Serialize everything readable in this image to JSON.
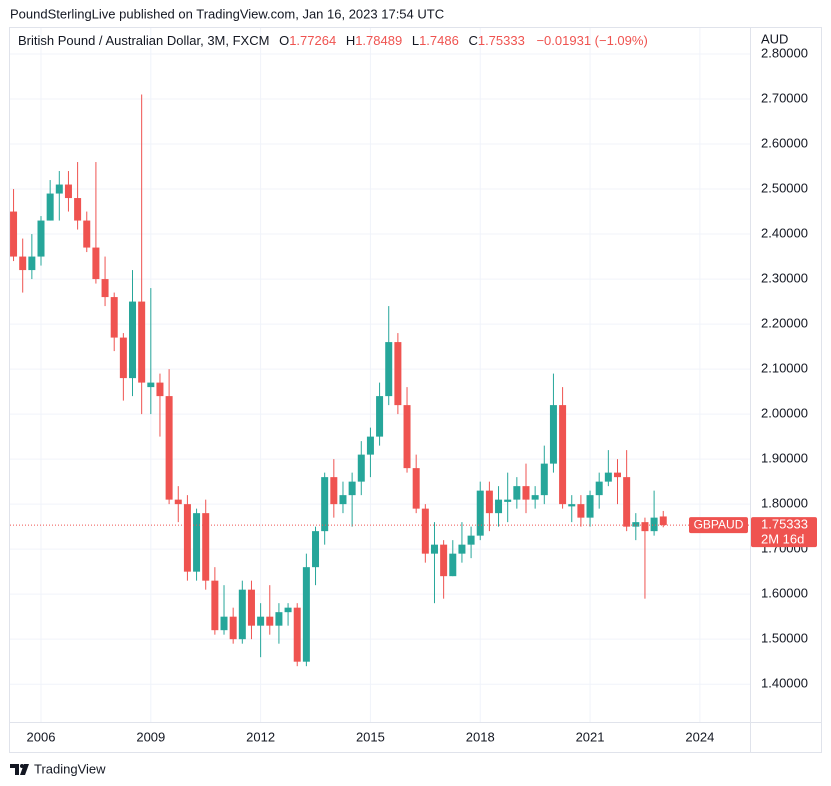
{
  "header": "PoundSterlingLive published on TradingView.com, Jan 16, 2023 17:54 UTC",
  "footer": "TradingView",
  "chart_data": {
    "type": "candlestick",
    "title": "British Pound / Australian Dollar, 3M, FXCM",
    "legend_labels": {
      "open": "O",
      "high": "H",
      "low": "L",
      "close": "C"
    },
    "change_label": "−0.01931 (−1.09%)",
    "axis_unit": "AUD",
    "symbol": "GBPAUD",
    "countdown": "2M 16d",
    "up_color": "#26a69a",
    "down_color": "#ef5350",
    "grid": true,
    "x": [
      2005.25,
      2005.5,
      2005.75,
      2006,
      2006.25,
      2006.5,
      2006.75,
      2007,
      2007.25,
      2007.5,
      2007.75,
      2008,
      2008.25,
      2008.5,
      2008.75,
      2009,
      2009.25,
      2009.5,
      2009.75,
      2010,
      2010.25,
      2010.5,
      2010.75,
      2011,
      2011.25,
      2011.5,
      2011.75,
      2012,
      2012.25,
      2012.5,
      2012.75,
      2013,
      2013.25,
      2013.5,
      2013.75,
      2014,
      2014.25,
      2014.5,
      2014.75,
      2015,
      2015.25,
      2015.5,
      2015.75,
      2016,
      2016.25,
      2016.5,
      2016.75,
      2017,
      2017.25,
      2017.5,
      2017.75,
      2018,
      2018.25,
      2018.5,
      2018.75,
      2019,
      2019.25,
      2019.5,
      2019.75,
      2020,
      2020.25,
      2020.5,
      2020.75,
      2021,
      2021.25,
      2021.5,
      2021.75,
      2022,
      2022.25,
      2022.5,
      2022.75,
      2023
    ],
    "open": [
      2.45,
      2.35,
      2.32,
      2.35,
      2.43,
      2.49,
      2.51,
      2.48,
      2.43,
      2.37,
      2.3,
      2.26,
      2.17,
      2.08,
      2.25,
      2.06,
      2.07,
      2.04,
      1.81,
      1.8,
      1.65,
      1.78,
      1.63,
      1.52,
      1.55,
      1.5,
      1.61,
      1.53,
      1.55,
      1.53,
      1.56,
      1.57,
      1.45,
      1.66,
      1.74,
      1.86,
      1.8,
      1.82,
      1.85,
      1.91,
      1.95,
      2.04,
      2.16,
      2.02,
      1.88,
      1.79,
      1.69,
      1.71,
      1.64,
      1.69,
      1.71,
      1.73,
      1.83,
      1.78,
      1.805,
      1.81,
      1.84,
      1.81,
      1.82,
      1.89,
      2.02,
      1.795,
      1.8,
      1.77,
      1.82,
      1.85,
      1.87,
      1.86,
      1.75,
      1.76,
      1.74,
      1.77264
    ],
    "high": [
      2.5,
      2.39,
      2.4,
      2.44,
      2.52,
      2.54,
      2.54,
      2.56,
      2.45,
      2.56,
      2.35,
      2.27,
      2.18,
      2.32,
      2.71,
      2.28,
      2.09,
      2.1,
      1.84,
      1.82,
      1.79,
      1.81,
      1.66,
      1.62,
      1.57,
      1.63,
      1.63,
      1.58,
      1.62,
      1.58,
      1.58,
      1.58,
      1.69,
      1.75,
      1.87,
      1.9,
      1.85,
      1.87,
      1.94,
      1.97,
      2.07,
      2.24,
      2.18,
      2.06,
      1.91,
      1.8,
      1.76,
      1.72,
      1.72,
      1.76,
      1.75,
      1.85,
      1.85,
      1.84,
      1.87,
      1.86,
      1.89,
      1.84,
      1.93,
      2.09,
      2.06,
      1.82,
      1.82,
      1.83,
      1.87,
      1.92,
      1.9,
      1.92,
      1.78,
      1.77,
      1.83,
      1.78489
    ],
    "low": [
      2.34,
      2.27,
      2.3,
      2.33,
      2.43,
      2.43,
      2.45,
      2.41,
      2.36,
      2.29,
      2.24,
      2.14,
      2.03,
      2.04,
      2.0,
      2.0,
      1.95,
      1.8,
      1.76,
      1.63,
      1.63,
      1.61,
      1.51,
      1.51,
      1.49,
      1.49,
      1.5,
      1.46,
      1.51,
      1.49,
      1.53,
      1.44,
      1.44,
      1.62,
      1.71,
      1.77,
      1.78,
      1.75,
      1.82,
      1.86,
      1.93,
      2.02,
      2.0,
      1.87,
      1.78,
      1.67,
      1.58,
      1.59,
      1.64,
      1.67,
      1.68,
      1.72,
      1.74,
      1.75,
      1.76,
      1.79,
      1.78,
      1.79,
      1.8,
      1.87,
      1.79,
      1.76,
      1.75,
      1.75,
      1.79,
      1.84,
      1.8,
      1.74,
      1.72,
      1.59,
      1.73,
      1.7486
    ],
    "close": [
      2.35,
      2.32,
      2.35,
      2.43,
      2.49,
      2.51,
      2.48,
      2.43,
      2.37,
      2.3,
      2.26,
      2.17,
      2.08,
      2.25,
      2.07,
      2.07,
      2.04,
      1.81,
      1.8,
      1.65,
      1.78,
      1.63,
      1.52,
      1.55,
      1.5,
      1.61,
      1.53,
      1.55,
      1.53,
      1.56,
      1.57,
      1.45,
      1.66,
      1.74,
      1.86,
      1.8,
      1.82,
      1.85,
      1.91,
      1.95,
      2.04,
      2.16,
      2.02,
      1.88,
      1.79,
      1.69,
      1.71,
      1.64,
      1.69,
      1.71,
      1.73,
      1.83,
      1.78,
      1.81,
      1.81,
      1.84,
      1.81,
      1.82,
      1.89,
      2.02,
      1.8,
      1.8,
      1.77,
      1.82,
      1.85,
      1.87,
      1.86,
      1.75,
      1.76,
      1.74,
      1.77,
      1.75333
    ],
    "xlim": [
      2005.153,
      2025.37
    ],
    "xticks": [
      2006,
      2009,
      2012,
      2015,
      2018,
      2021,
      2024
    ],
    "ylim": [
      1.316,
      2.86
    ],
    "yticks": [
      {
        "value": 2.8,
        "label": "2.80000"
      },
      {
        "value": 2.7,
        "label": "2.70000"
      },
      {
        "value": 2.6,
        "label": "2.60000"
      },
      {
        "value": 2.5,
        "label": "2.50000"
      },
      {
        "value": 2.4,
        "label": "2.40000"
      },
      {
        "value": 2.3,
        "label": "2.30000"
      },
      {
        "value": 2.2,
        "label": "2.20000"
      },
      {
        "value": 2.1,
        "label": "2.10000"
      },
      {
        "value": 2.0,
        "label": "2.00000"
      },
      {
        "value": 1.9,
        "label": "1.90000"
      },
      {
        "value": 1.8,
        "label": "1.80000"
      },
      {
        "value": 1.7,
        "label": "1.70000"
      },
      {
        "value": 1.6,
        "label": "1.60000"
      },
      {
        "value": 1.5,
        "label": "1.50000"
      },
      {
        "value": 1.4,
        "label": "1.40000"
      }
    ]
  }
}
